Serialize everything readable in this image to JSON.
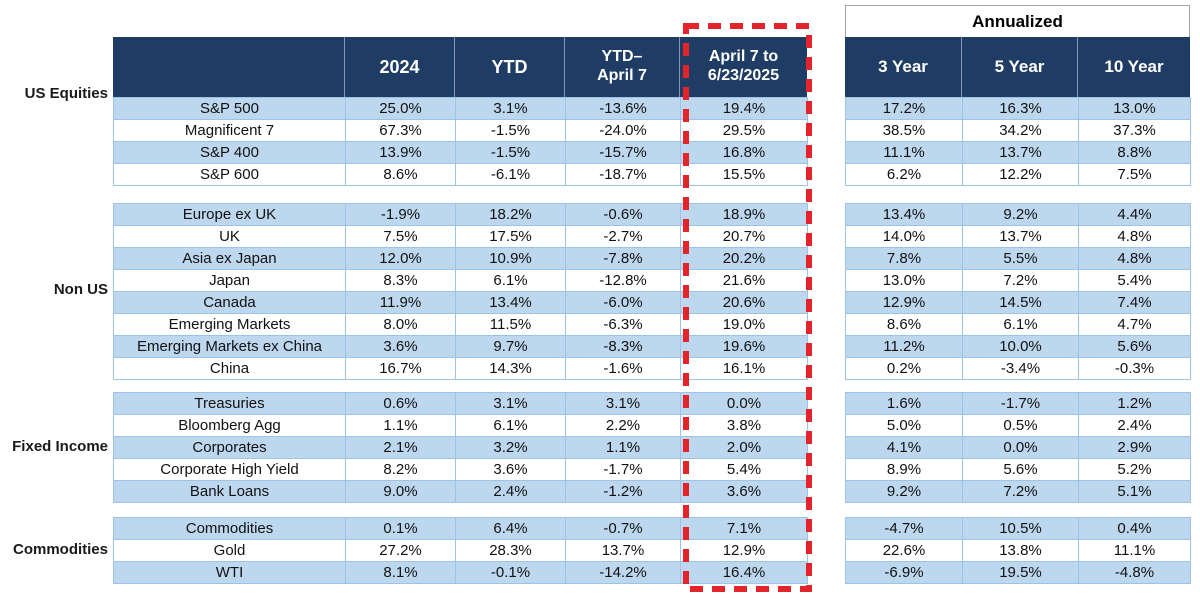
{
  "colors": {
    "header_navy": "#1F3C64",
    "row_blue": "#BDD7EE",
    "grid_blue": "#9DC3E6",
    "highlight_red": "#E3242B",
    "annualized_border": "#A6A6A6"
  },
  "chart_data": {
    "type": "table",
    "column_headers": {
      "c2024": "2024",
      "ytd": "YTD",
      "ytd_apr7_l1": "YTD–",
      "ytd_apr7_l2": "April 7",
      "apr7_l1": "April 7 to",
      "apr7_l2": "6/23/2025",
      "annualized": "Annualized",
      "y3": "3 Year",
      "y5": "5 Year",
      "y10": "10 Year"
    },
    "value_columns": [
      "2024",
      "YTD",
      "YTD–April 7",
      "April 7 to 6/23/2025",
      "3 Year",
      "5 Year",
      "10 Year"
    ],
    "highlighted_column": "April 7 to 6/23/2025",
    "sections": [
      {
        "label": "US Equities",
        "rows": [
          {
            "name": "S&P 500",
            "values": [
              "25.0%",
              "3.1%",
              "-13.6%",
              "19.4%",
              "17.2%",
              "16.3%",
              "13.0%"
            ]
          },
          {
            "name": "Magnificent 7",
            "values": [
              "67.3%",
              "-1.5%",
              "-24.0%",
              "29.5%",
              "38.5%",
              "34.2%",
              "37.3%"
            ]
          },
          {
            "name": "S&P 400",
            "values": [
              "13.9%",
              "-1.5%",
              "-15.7%",
              "16.8%",
              "11.1%",
              "13.7%",
              "8.8%"
            ]
          },
          {
            "name": "S&P 600",
            "values": [
              "8.6%",
              "-6.1%",
              "-18.7%",
              "15.5%",
              "6.2%",
              "12.2%",
              "7.5%"
            ]
          }
        ]
      },
      {
        "label": "Non US",
        "rows": [
          {
            "name": "Europe ex UK",
            "values": [
              "-1.9%",
              "18.2%",
              "-0.6%",
              "18.9%",
              "13.4%",
              "9.2%",
              "4.4%"
            ]
          },
          {
            "name": "UK",
            "values": [
              "7.5%",
              "17.5%",
              "-2.7%",
              "20.7%",
              "14.0%",
              "13.7%",
              "4.8%"
            ]
          },
          {
            "name": "Asia ex Japan",
            "values": [
              "12.0%",
              "10.9%",
              "-7.8%",
              "20.2%",
              "7.8%",
              "5.5%",
              "4.8%"
            ]
          },
          {
            "name": "Japan",
            "values": [
              "8.3%",
              "6.1%",
              "-12.8%",
              "21.6%",
              "13.0%",
              "7.2%",
              "5.4%"
            ]
          },
          {
            "name": "Canada",
            "values": [
              "11.9%",
              "13.4%",
              "-6.0%",
              "20.6%",
              "12.9%",
              "14.5%",
              "7.4%"
            ]
          },
          {
            "name": "Emerging Markets",
            "values": [
              "8.0%",
              "11.5%",
              "-6.3%",
              "19.0%",
              "8.6%",
              "6.1%",
              "4.7%"
            ]
          },
          {
            "name": "Emerging Markets ex China",
            "values": [
              "3.6%",
              "9.7%",
              "-8.3%",
              "19.6%",
              "11.2%",
              "10.0%",
              "5.6%"
            ]
          },
          {
            "name": "China",
            "values": [
              "16.7%",
              "14.3%",
              "-1.6%",
              "16.1%",
              "0.2%",
              "-3.4%",
              "-0.3%"
            ]
          }
        ]
      },
      {
        "label": "Fixed Income",
        "rows": [
          {
            "name": "Treasuries",
            "values": [
              "0.6%",
              "3.1%",
              "3.1%",
              "0.0%",
              "1.6%",
              "-1.7%",
              "1.2%"
            ]
          },
          {
            "name": "Bloomberg Agg",
            "values": [
              "1.1%",
              "6.1%",
              "2.2%",
              "3.8%",
              "5.0%",
              "0.5%",
              "2.4%"
            ]
          },
          {
            "name": "Corporates",
            "values": [
              "2.1%",
              "3.2%",
              "1.1%",
              "2.0%",
              "4.1%",
              "0.0%",
              "2.9%"
            ]
          },
          {
            "name": "Corporate High Yield",
            "values": [
              "8.2%",
              "3.6%",
              "-1.7%",
              "5.4%",
              "8.9%",
              "5.6%",
              "5.2%"
            ]
          },
          {
            "name": "Bank Loans",
            "values": [
              "9.0%",
              "2.4%",
              "-1.2%",
              "3.6%",
              "9.2%",
              "7.2%",
              "5.1%"
            ]
          }
        ]
      },
      {
        "label": "Commodities",
        "rows": [
          {
            "name": "Commodities",
            "values": [
              "0.1%",
              "6.4%",
              "-0.7%",
              "7.1%",
              "-4.7%",
              "10.5%",
              "0.4%"
            ]
          },
          {
            "name": "Gold",
            "values": [
              "27.2%",
              "28.3%",
              "13.7%",
              "12.9%",
              "22.6%",
              "13.8%",
              "11.1%"
            ]
          },
          {
            "name": "WTI",
            "values": [
              "8.1%",
              "-0.1%",
              "-14.2%",
              "16.4%",
              "-6.9%",
              "19.5%",
              "-4.8%"
            ]
          }
        ]
      }
    ]
  }
}
